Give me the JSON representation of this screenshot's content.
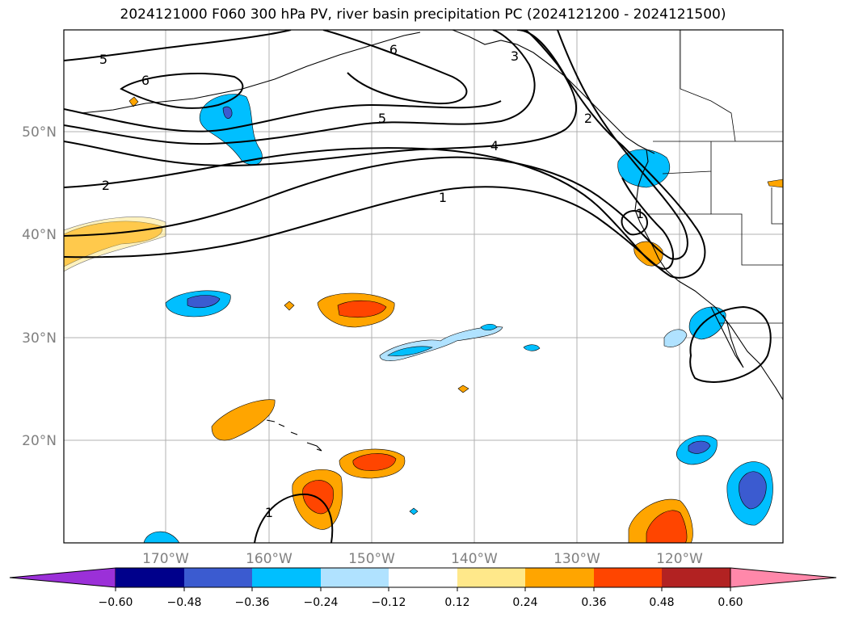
{
  "title": "2024121000 F060 300 hPa PV, river basin precipitation PC (2024121200 - 2024121500)",
  "map": {
    "lat_labels": [
      "50°N",
      "40°N",
      "30°N",
      "20°N"
    ],
    "lon_labels": [
      "170°W",
      "160°W",
      "150°W",
      "140°W",
      "130°W",
      "120°W"
    ],
    "contour_labels": [
      "5",
      "6",
      "6",
      "5",
      "4",
      "1",
      "2",
      "2",
      "1",
      "3",
      "1"
    ]
  },
  "colorbar": {
    "ticks": [
      "−0.60",
      "−0.48",
      "−0.36",
      "−0.24",
      "−0.12",
      "0.12",
      "0.24",
      "0.36",
      "0.48",
      "0.60"
    ],
    "colors": {
      "under": "#9b30d8",
      "c1": "#00008b",
      "c2": "#3b5bd0",
      "c3": "#00bfff",
      "c4": "#b0e2ff",
      "c5": "#ffffff",
      "c6": "#ffe88a",
      "c7": "#ffa500",
      "c8": "#ff4500",
      "c9": "#b22222",
      "over": "#ff88aa"
    }
  }
}
